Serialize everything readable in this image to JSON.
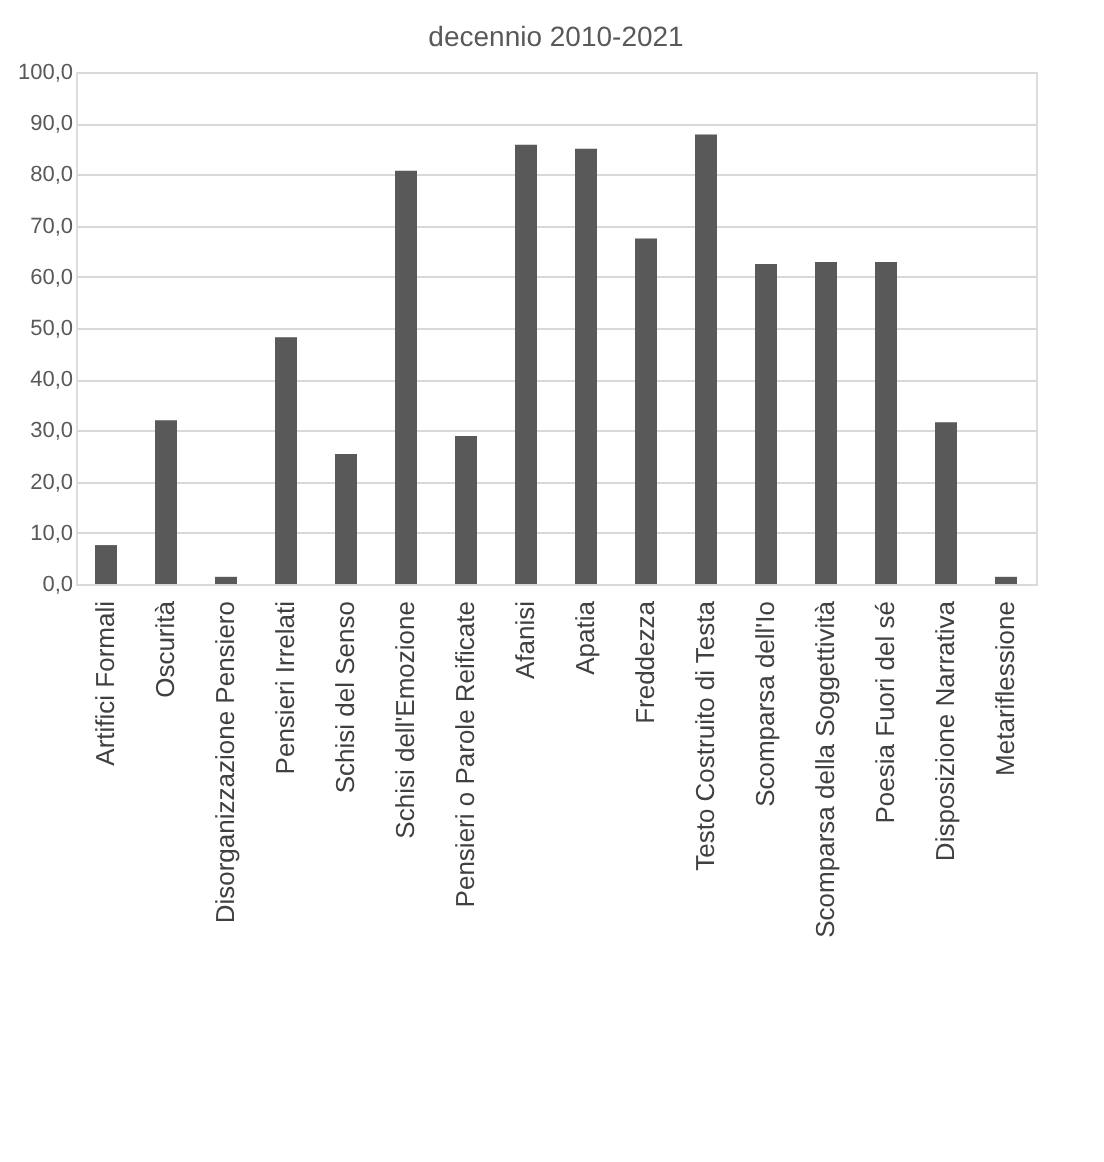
{
  "chart_data": {
    "type": "bar",
    "title": "decennio 2010-2021",
    "categories": [
      "Artifici Formali",
      "Oscurità",
      "Disorganizzazione Pensiero",
      "Pensieri Irrelati",
      "Schisi del Senso",
      "Schisi dell'Emozione",
      "Pensieri o Parole Reificate",
      "Afanisi",
      "Apatia",
      "Freddezza",
      "Testo Costruito di Testa",
      "Scomparsa dell'Io",
      "Scomparsa della Soggettività",
      "Poesia Fuori del sé",
      "Disposizione Narrativa",
      "Metariflessione"
    ],
    "values": [
      7.6,
      32.0,
      1.4,
      48.2,
      25.4,
      80.7,
      28.9,
      85.8,
      85.0,
      67.5,
      87.8,
      62.5,
      62.9,
      62.9,
      31.6,
      1.4
    ],
    "color": "#595959",
    "ylim": [
      0,
      100
    ],
    "yticks": [
      {
        "value": 0,
        "label": "0,0"
      },
      {
        "value": 10,
        "label": "10,0"
      },
      {
        "value": 20,
        "label": "20,0"
      },
      {
        "value": 30,
        "label": "30,0"
      },
      {
        "value": 40,
        "label": "40,0"
      },
      {
        "value": 50,
        "label": "50,0"
      },
      {
        "value": 60,
        "label": "60,0"
      },
      {
        "value": 70,
        "label": "70,0"
      },
      {
        "value": 80,
        "label": "80,0"
      },
      {
        "value": 90,
        "label": "90,0"
      },
      {
        "value": 100,
        "label": "100,0"
      }
    ],
    "grid": "y"
  }
}
